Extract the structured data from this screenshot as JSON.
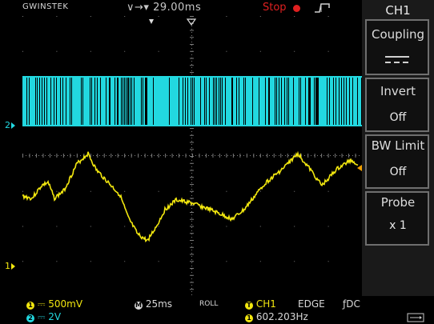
{
  "header": {
    "brand": "GWINSTEK",
    "timebase_position": "29.00ms",
    "run_state": "Stop"
  },
  "menu": {
    "title": "CH1",
    "items": [
      {
        "label": "Coupling",
        "value": ""
      },
      {
        "label": "Invert",
        "value": "Off"
      },
      {
        "label": "BW Limit",
        "value": "Off"
      },
      {
        "label": "Probe",
        "value": "x 1"
      }
    ]
  },
  "markers": {
    "ch2": "2",
    "ch1": "1"
  },
  "status": {
    "ch1_scale": "500mV",
    "ch2_scale": "2V",
    "time_scale": "25ms",
    "mode": "ROLL",
    "trigger_source": "CH1",
    "trigger_type": "EDGE",
    "trigger_coupling": "DC",
    "frequency": "602.203Hz"
  },
  "colors": {
    "ch1": "#f2e70f",
    "ch2": "#22d8e0",
    "stop": "#e02020",
    "grid": "#7a7a7a"
  }
}
